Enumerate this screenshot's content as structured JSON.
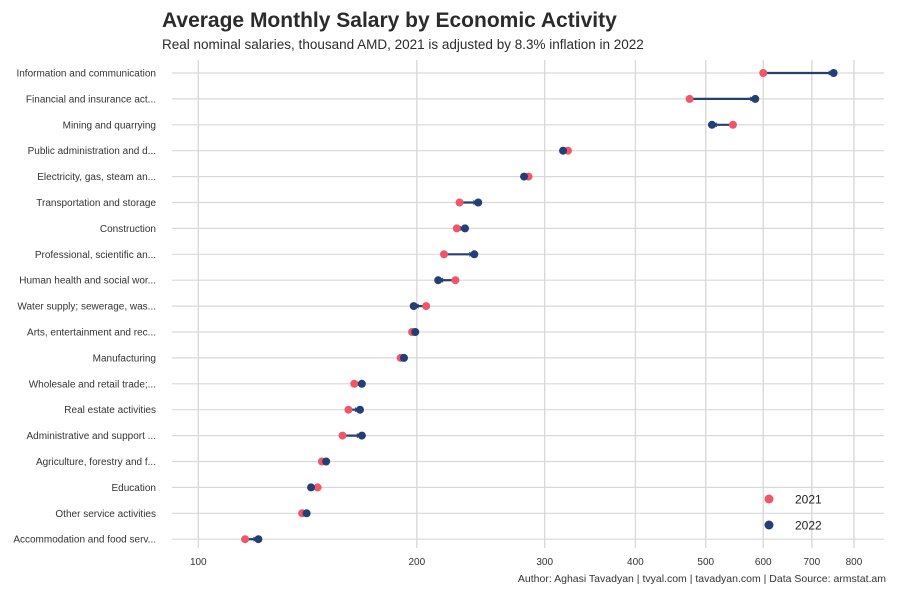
{
  "chart_data": {
    "type": "dumbbell",
    "title": "Average Monthly Salary by Economic Activity",
    "subtitle": "Real nominal salaries, thousand AMD, 2021 is adjusted by 8.3% inflation in 2022",
    "caption": "Author: Aghasi Tavadyan   |   tvyal.com   |   tavadyan.com   |   Data Source: armstat.am",
    "x_scale": "log",
    "xlim": [
      92,
      880
    ],
    "x_ticks": [
      100,
      200,
      300,
      400,
      500,
      600,
      700,
      800
    ],
    "grid": true,
    "legend_position": "bottom-right",
    "colors": {
      "2021": "#f0566a",
      "2022": "#243f73",
      "arrow": "#243f73",
      "grid": "#d9d9d9"
    },
    "series_names": [
      "2021",
      "2022"
    ],
    "categories": [
      "Information and communication",
      "Financial and insurance act...",
      "Mining and quarrying",
      "Public administration and d...",
      "Electricity,  gas, steam an...",
      "Transportation and storage",
      "Construction",
      "Professional, scientific an...",
      "Human health and social wor...",
      "Water supply; sewerage, was...",
      "Arts, entertainment and rec...",
      "Manufacturing",
      "Wholesale and retail trade;...",
      "Real estate activities",
      "Administrative and support ...",
      "Agriculture, forestry and f...",
      "Education",
      "Other service activities",
      "Accommodation and food serv..."
    ],
    "series": [
      {
        "name": "2021",
        "values": [
          600,
          475,
          545,
          323,
          285,
          229,
          227,
          218,
          226,
          206,
          197,
          190,
          164,
          161,
          158,
          148,
          146,
          139,
          116
        ]
      },
      {
        "name": "2022",
        "values": [
          750,
          585,
          510,
          318,
          281,
          243,
          233,
          240,
          214,
          198,
          199,
          192,
          168,
          167,
          168,
          150,
          143,
          141,
          121
        ]
      }
    ]
  }
}
